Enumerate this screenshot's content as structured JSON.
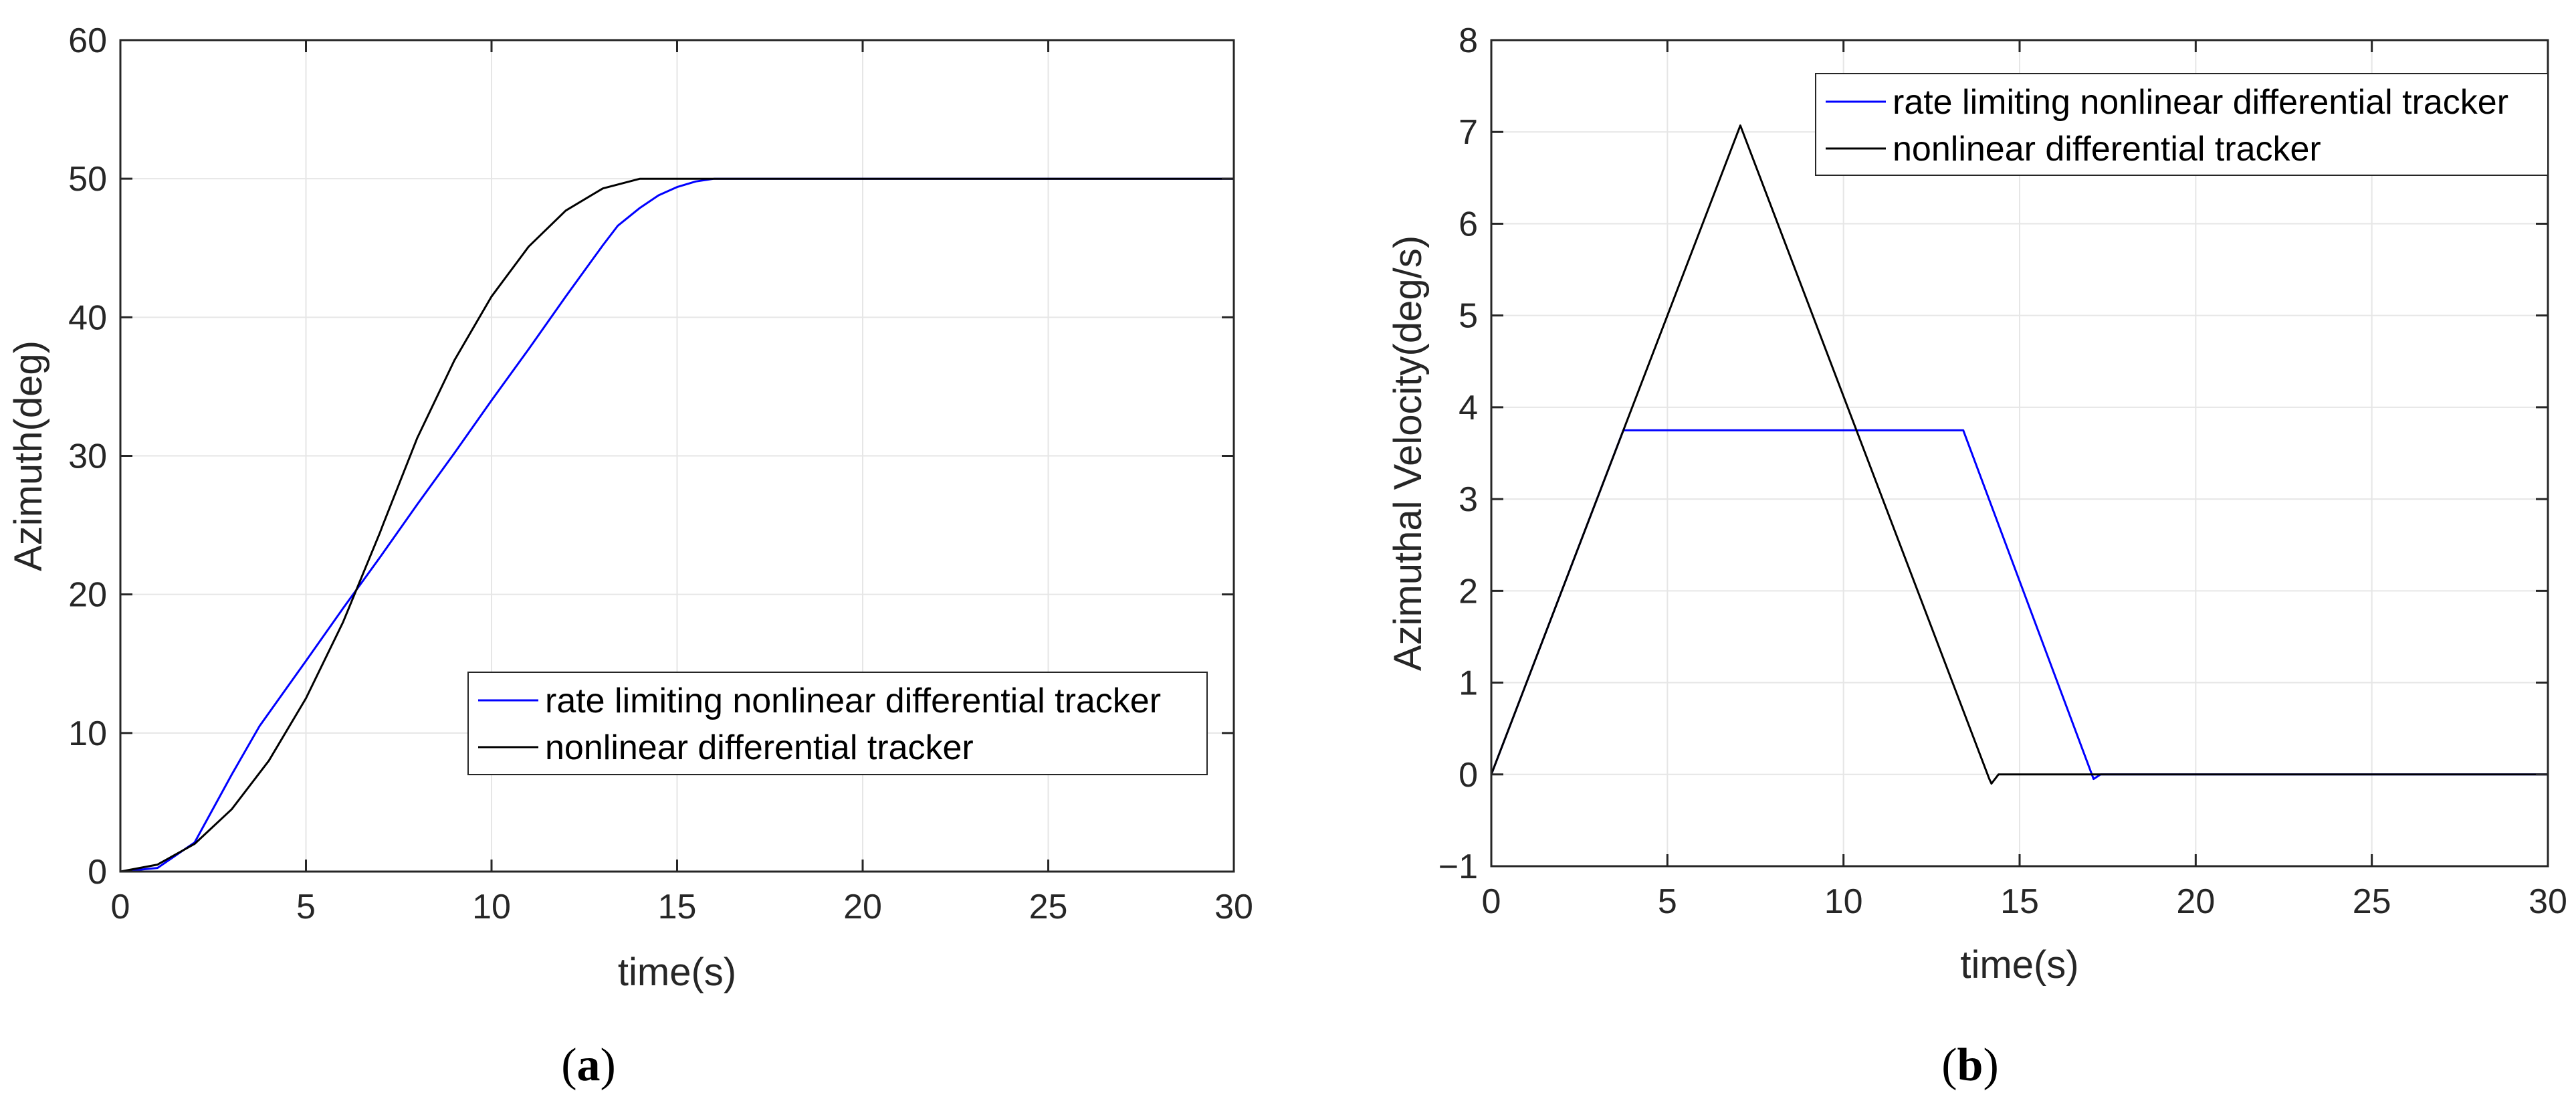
{
  "captions": {
    "a_open": "(",
    "a_letter": "a",
    "a_close": ")",
    "b_open": "(",
    "b_letter": "b",
    "b_close": ")"
  },
  "colors": {
    "rate_limiting": "#0000ff",
    "nonlinear": "#000000",
    "grid": "#e6e6e6",
    "axis": "#262626",
    "background": "#ffffff"
  },
  "chart_data": [
    {
      "type": "line",
      "panel": "a",
      "xlabel": "time(s)",
      "ylabel": "Azimuth(deg)",
      "xlim": [
        0,
        30
      ],
      "ylim": [
        0,
        60
      ],
      "xticks": [
        0,
        5,
        10,
        15,
        20,
        25,
        30
      ],
      "yticks": [
        0,
        10,
        20,
        30,
        40,
        50,
        60
      ],
      "grid": true,
      "legend_position": "lower-right",
      "series": [
        {
          "name": "rate limiting nonlinear differential tracker",
          "color": "#0000ff",
          "x": [
            0,
            1,
            2,
            3,
            3.75,
            5,
            6,
            7,
            8,
            9,
            10,
            11,
            12,
            13,
            13.4,
            14,
            14.5,
            15,
            15.5,
            16,
            16.5,
            17.1,
            20,
            25,
            30
          ],
          "y": [
            0,
            0.26,
            2.1,
            7.0,
            10.5,
            15.2,
            19.0,
            22.7,
            26.5,
            30.2,
            34.0,
            37.7,
            41.5,
            45.2,
            46.6,
            47.9,
            48.8,
            49.4,
            49.8,
            50.0,
            50.0,
            50.0,
            50.0,
            50.0,
            50.0
          ]
        },
        {
          "name": "nonlinear differential tracker",
          "color": "#000000",
          "x": [
            0,
            1,
            2,
            3,
            4,
            5,
            6,
            7,
            7.07,
            8,
            9,
            10,
            11,
            12,
            13,
            14,
            14.14,
            15,
            20,
            25,
            30
          ],
          "y": [
            0,
            0.5,
            2.0,
            4.5,
            8.0,
            12.5,
            18.0,
            24.5,
            25.0,
            31.3,
            36.9,
            41.5,
            45.1,
            47.7,
            49.3,
            50.0,
            50.0,
            50.0,
            50.0,
            50.0,
            50.0
          ]
        }
      ]
    },
    {
      "type": "line",
      "panel": "b",
      "xlabel": "time(s)",
      "ylabel": "Azimuthal Velocity(deg/s)",
      "xlim": [
        0,
        30
      ],
      "ylim": [
        -1,
        8
      ],
      "xticks": [
        0,
        5,
        10,
        15,
        20,
        25,
        30
      ],
      "yticks": [
        -1,
        0,
        1,
        2,
        3,
        4,
        5,
        6,
        7,
        8
      ],
      "ytick_labels": [
        "−1",
        "0",
        "1",
        "2",
        "3",
        "4",
        "5",
        "6",
        "7",
        "8"
      ],
      "grid": true,
      "legend_position": "top-right",
      "series": [
        {
          "name": "rate limiting nonlinear differential tracker",
          "color": "#0000ff",
          "x": [
            0,
            3.75,
            13.4,
            17.1,
            17.3,
            30
          ],
          "y": [
            0,
            3.75,
            3.75,
            -0.05,
            0,
            0
          ]
        },
        {
          "name": "nonlinear differential tracker",
          "color": "#000000",
          "x": [
            0,
            7.07,
            14.14,
            14.2,
            14.4,
            30
          ],
          "y": [
            0,
            7.07,
            -0.05,
            -0.1,
            0,
            0
          ]
        }
      ]
    }
  ]
}
